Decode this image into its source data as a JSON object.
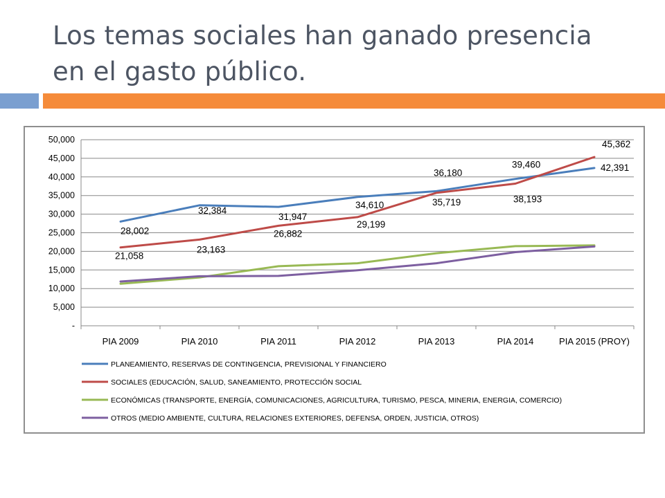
{
  "slide": {
    "title_line1": "Los temas sociales han ganado presencia",
    "title_line2": "en el gasto público.",
    "colors": {
      "title": "#4d5563",
      "accent_blue": "#7a9fd0",
      "accent_orange": "#f58b3a"
    }
  },
  "chart_data": {
    "type": "line",
    "title": "",
    "xlabel": "",
    "ylabel": "",
    "grid": true,
    "legend_position": "bottom",
    "ylim": [
      0,
      50000
    ],
    "y_ticks": [
      0,
      5000,
      10000,
      15000,
      20000,
      25000,
      30000,
      35000,
      40000,
      45000,
      50000
    ],
    "y_tick_labels": [
      "-",
      "5,000",
      "10,000",
      "15,000",
      "20,000",
      "25,000",
      "30,000",
      "35,000",
      "40,000",
      "45,000",
      "50,000"
    ],
    "categories": [
      "PIA 2009",
      "PIA 2010",
      "PIA 2011",
      "PIA 2012",
      "PIA 2013",
      "PIA 2014",
      "PIA 2015 (PROY)"
    ],
    "series": [
      {
        "name": "PLANEAMIENTO, RESERVAS DE CONTINGENCIA, PREVISIONAL Y FINANCIERO",
        "color": "#4a7ebb",
        "values": [
          28002,
          32384,
          31947,
          34610,
          36180,
          39460,
          42391
        ],
        "labels": [
          "28,002",
          "32,384",
          "31,947",
          "34,610",
          "36,180",
          "39,460",
          "42,391"
        ]
      },
      {
        "name": "SOCIALES (EDUCACIÓN, SALUD, SANEAMIENTO, PROTECCIÓN SOCIAL",
        "color": "#be4b48",
        "values": [
          21058,
          23163,
          26882,
          29199,
          35719,
          38193,
          45362
        ],
        "labels": [
          "21,058",
          "23,163",
          "26,882",
          "29,199",
          "35,719",
          "38,193",
          "45,362"
        ]
      },
      {
        "name": "ECONÓMICAS (TRANSPORTE, ENERGÍA, COMUNICACIONES, AGRICULTURA, TURISMO, PESCA, MINERIA, ENERGIA, COMERCIO)",
        "color": "#98b954",
        "values": [
          11300,
          13000,
          16000,
          16800,
          19500,
          21400,
          21600
        ],
        "labels": []
      },
      {
        "name": "OTROS (MEDIO AMBIENTE, CULTURA, RELACIONES EXTERIORES, DEFENSA, ORDEN, JUSTICIA, OTROS)",
        "color": "#7d5fa0",
        "values": [
          11900,
          13300,
          13400,
          14900,
          16800,
          19800,
          21300
        ],
        "labels": []
      }
    ]
  }
}
